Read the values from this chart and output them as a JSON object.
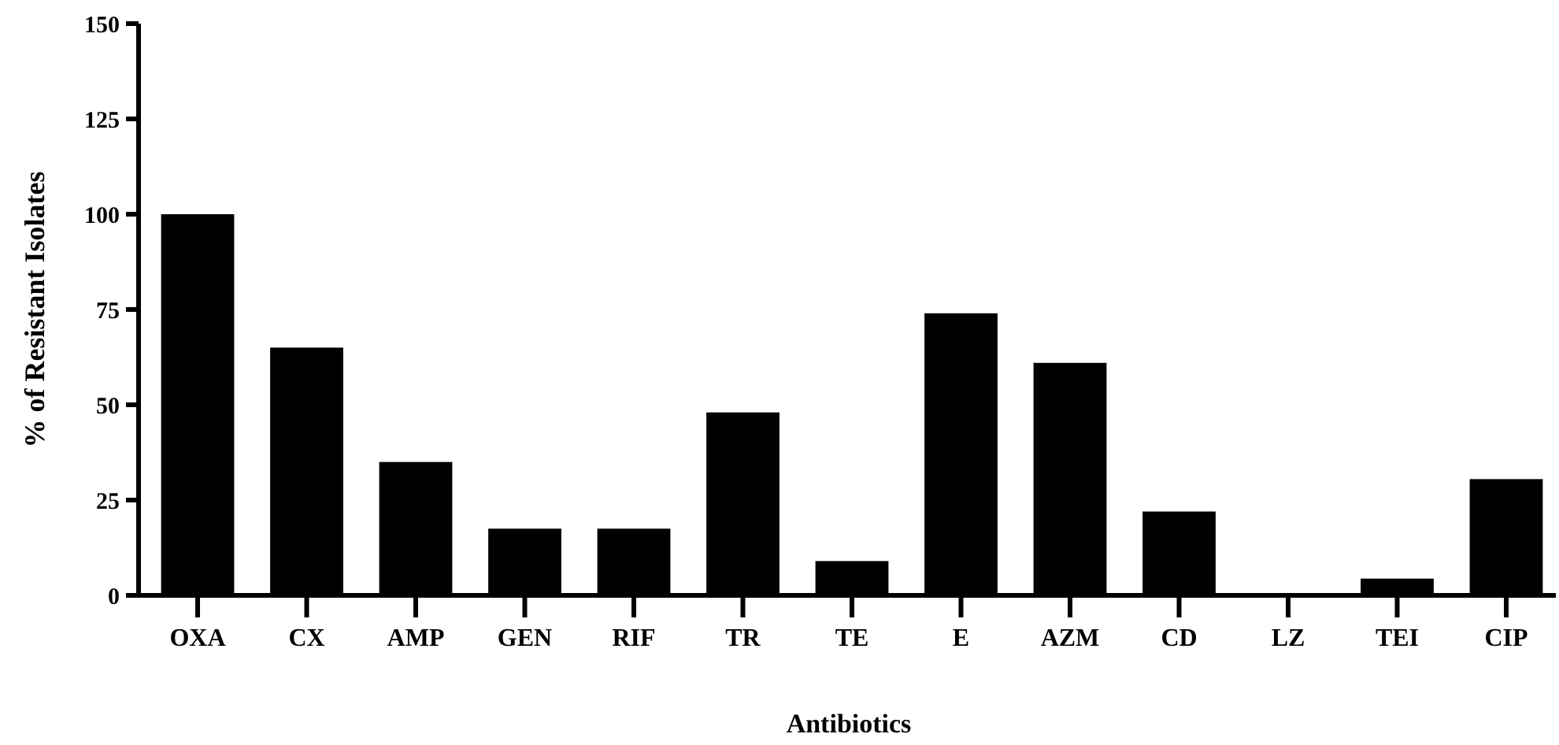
{
  "chart_data": {
    "type": "bar",
    "xlabel": "Antibiotics",
    "ylabel": "% of Resistant Isolates",
    "categories": [
      "OXA",
      "CX",
      "AMP",
      "GEN",
      "RIF",
      "TR",
      "TE",
      "E",
      "AZM",
      "CD",
      "LZ",
      "TEI",
      "CIP"
    ],
    "values": [
      100,
      65,
      35,
      17.5,
      17.5,
      48,
      9,
      74,
      61,
      22,
      0,
      4.4,
      30.5
    ],
    "color": "#000000",
    "ylim": [
      0,
      150
    ],
    "yticks": [
      0,
      25,
      50,
      75,
      100,
      125,
      150
    ],
    "grid": false
  }
}
